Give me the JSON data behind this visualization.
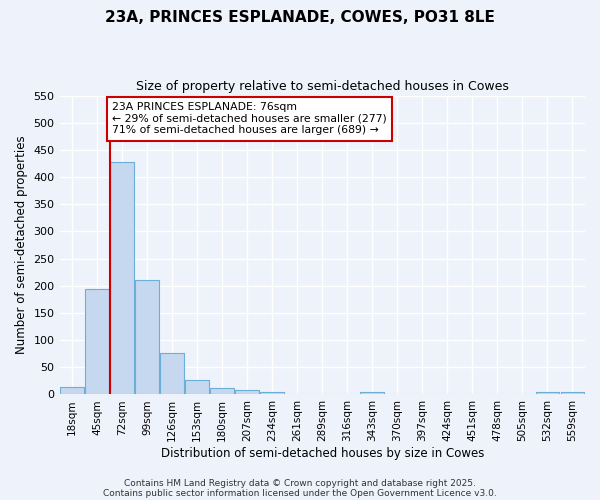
{
  "title": "23A, PRINCES ESPLANADE, COWES, PO31 8LE",
  "subtitle": "Size of property relative to semi-detached houses in Cowes",
  "xlabel": "Distribution of semi-detached houses by size in Cowes",
  "ylabel": "Number of semi-detached properties",
  "categories": [
    "18sqm",
    "45sqm",
    "72sqm",
    "99sqm",
    "126sqm",
    "153sqm",
    "180sqm",
    "207sqm",
    "234sqm",
    "261sqm",
    "289sqm",
    "316sqm",
    "343sqm",
    "370sqm",
    "397sqm",
    "424sqm",
    "451sqm",
    "478sqm",
    "505sqm",
    "532sqm",
    "559sqm"
  ],
  "values": [
    13,
    194,
    428,
    211,
    77,
    27,
    11,
    8,
    4,
    0,
    0,
    0,
    4,
    0,
    0,
    0,
    0,
    0,
    0,
    4,
    4
  ],
  "bar_color": "#c5d8f0",
  "bar_edge_color": "#6baed6",
  "property_line_index": 2,
  "pct_smaller": 29,
  "count_smaller": 277,
  "pct_larger": 71,
  "count_larger": 689,
  "annotation_label": "23A PRINCES ESPLANADE: 76sqm",
  "red_line_color": "#cc0000",
  "ylim": [
    0,
    550
  ],
  "yticks": [
    0,
    50,
    100,
    150,
    200,
    250,
    300,
    350,
    400,
    450,
    500,
    550
  ],
  "background_color": "#eef2fb",
  "grid_color": "#ffffff",
  "footer1": "Contains HM Land Registry data © Crown copyright and database right 2025.",
  "footer2": "Contains public sector information licensed under the Open Government Licence v3.0."
}
